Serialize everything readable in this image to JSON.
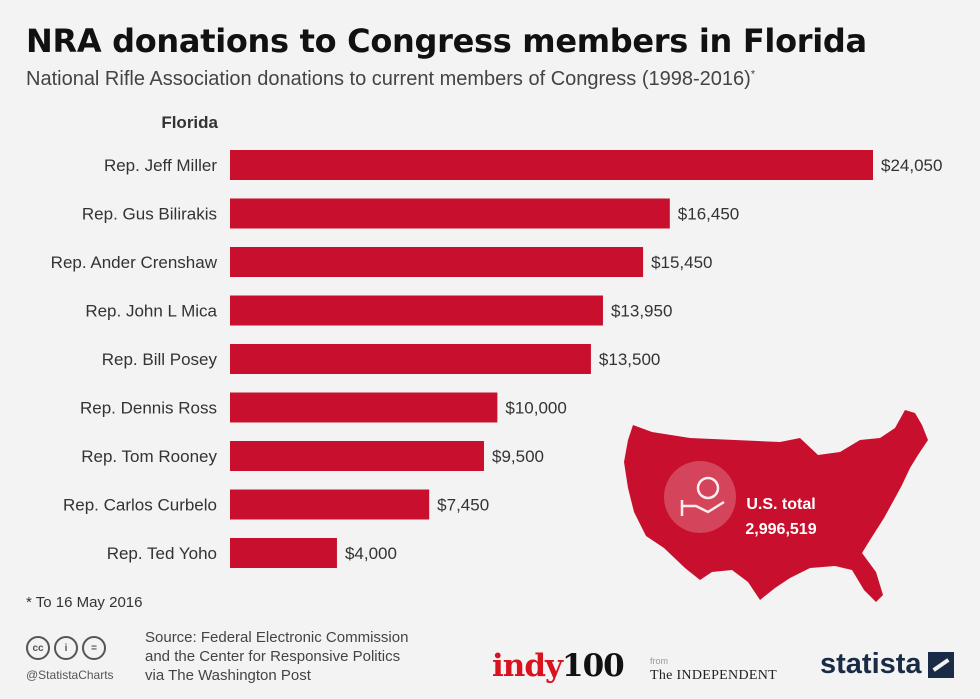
{
  "header": {
    "title": "NRA donations to Congress members in Florida",
    "subtitle": "National Rifle Association donations to current members of Congress (1998-2016)",
    "subtitle_mark": "*"
  },
  "chart_data": {
    "type": "bar",
    "orientation": "horizontal",
    "group_label": "Florida",
    "categories": [
      "Rep. Jeff Miller",
      "Rep. Gus Bilirakis",
      "Rep. Ander Crenshaw",
      "Rep. John L Mica",
      "Rep. Bill Posey",
      "Rep. Dennis Ross",
      "Rep. Tom Rooney",
      "Rep. Carlos Curbelo",
      "Rep. Ted Yoho"
    ],
    "values": [
      24050,
      16450,
      15450,
      13950,
      13500,
      10000,
      9500,
      7450,
      4000
    ],
    "value_labels": [
      "$24,050",
      "$16,450",
      "$15,450",
      "$13,950",
      "$13,500",
      "$10,000",
      "$9,500",
      "$7,450",
      "$4,000"
    ],
    "xlim": [
      0,
      24050
    ],
    "grid": false,
    "bar_color": "#c8102e",
    "annotation": {
      "label": "U.S. total",
      "value": "2,996,519",
      "icon": "money-hand-icon",
      "shape": "usa-map"
    }
  },
  "footer": {
    "footnote": "* To 16 May 2016",
    "source_lines": [
      "Source: Federal Electronic Commission",
      "and the Center for Responsive Politics",
      "via The Washington Post"
    ],
    "handle": "@StatistaCharts",
    "license_icons": [
      "cc",
      "i",
      "="
    ],
    "logos": {
      "indy_text": "indy",
      "indy_num": "100",
      "from": "from",
      "independent": "The INDEPENDENT",
      "statista": "statista"
    }
  }
}
